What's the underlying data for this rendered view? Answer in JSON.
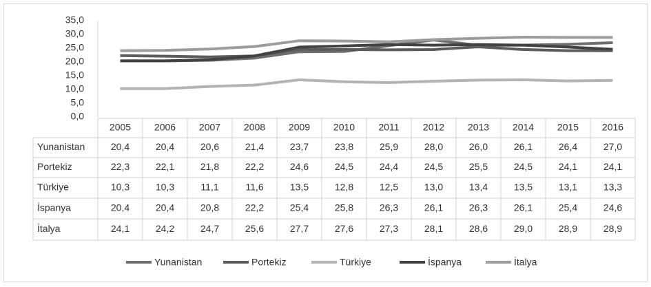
{
  "chart_data": {
    "type": "line",
    "categories": [
      "2005",
      "2006",
      "2007",
      "2008",
      "2009",
      "2010",
      "2011",
      "2012",
      "2013",
      "2014",
      "2015",
      "2016"
    ],
    "series": [
      {
        "name": "Yunanistan",
        "color": "#6e6e6e",
        "values": [
          20.4,
          20.4,
          20.6,
          21.4,
          23.7,
          23.8,
          25.9,
          28.0,
          26.0,
          26.1,
          26.4,
          27.0
        ],
        "value_labels": [
          "20,4",
          "20,4",
          "20,6",
          "21,4",
          "23,7",
          "23,8",
          "25,9",
          "28,0",
          "26,0",
          "26,1",
          "26,4",
          "27,0"
        ]
      },
      {
        "name": "Portekiz",
        "color": "#5c5c5c",
        "values": [
          22.3,
          22.1,
          21.8,
          22.2,
          24.6,
          24.5,
          24.4,
          24.5,
          25.5,
          24.5,
          24.1,
          24.1
        ],
        "value_labels": [
          "22,3",
          "22,1",
          "21,8",
          "22,2",
          "24,6",
          "24,5",
          "24,4",
          "24,5",
          "25,5",
          "24,5",
          "24,1",
          "24,1"
        ]
      },
      {
        "name": "Türkiye",
        "color": "#b3b3b3",
        "values": [
          10.3,
          10.3,
          11.1,
          11.6,
          13.5,
          12.8,
          12.5,
          13.0,
          13.4,
          13.5,
          13.1,
          13.3
        ],
        "value_labels": [
          "10,3",
          "10,3",
          "11,1",
          "11,6",
          "13,5",
          "12,8",
          "12,5",
          "13,0",
          "13,4",
          "13,5",
          "13,1",
          "13,3"
        ]
      },
      {
        "name": "İspanya",
        "color": "#424242",
        "values": [
          20.4,
          20.4,
          20.8,
          22.2,
          25.4,
          25.8,
          26.3,
          26.1,
          26.3,
          26.1,
          25.4,
          24.6
        ],
        "value_labels": [
          "20,4",
          "20,4",
          "20,8",
          "22,2",
          "25,4",
          "25,8",
          "26,3",
          "26,1",
          "26,3",
          "26,1",
          "25,4",
          "24,6"
        ]
      },
      {
        "name": "İtalya",
        "color": "#9c9c9c",
        "values": [
          24.1,
          24.2,
          24.7,
          25.6,
          27.7,
          27.6,
          27.3,
          28.1,
          28.6,
          29.0,
          28.9,
          28.9
        ],
        "value_labels": [
          "24,1",
          "24,2",
          "24,7",
          "25,6",
          "27,7",
          "27,6",
          "27,3",
          "28,1",
          "28,6",
          "29,0",
          "28,9",
          "28,9"
        ]
      }
    ],
    "ylim": [
      0,
      35
    ],
    "yticks": [
      {
        "value": 0,
        "label": "0,0"
      },
      {
        "value": 5,
        "label": "5,0"
      },
      {
        "value": 10,
        "label": "10,0"
      },
      {
        "value": 15,
        "label": "15,0"
      },
      {
        "value": 20,
        "label": "20,0"
      },
      {
        "value": 25,
        "label": "25,0"
      },
      {
        "value": 30,
        "label": "30,0"
      },
      {
        "value": 35,
        "label": "35,0"
      }
    ],
    "grid": false
  }
}
